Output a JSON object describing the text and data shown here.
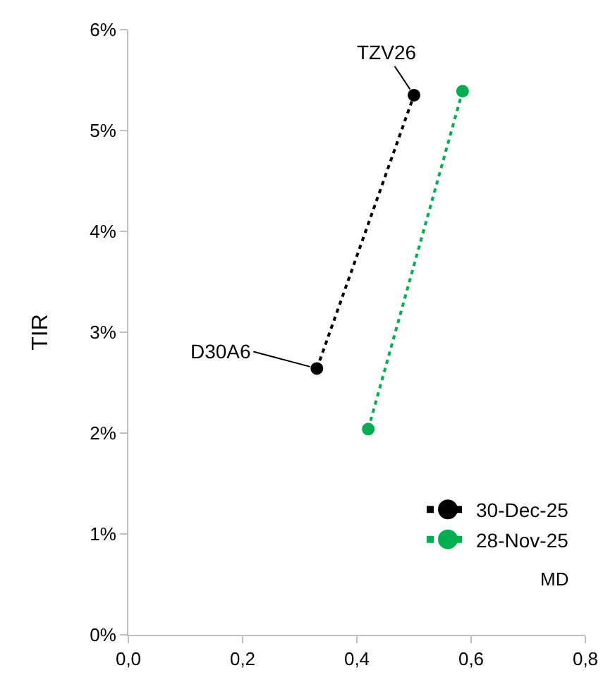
{
  "chart_data": {
    "type": "line",
    "xlabel": "MD",
    "ylabel": "TIR",
    "series": [
      {
        "name": "30-Dec-25",
        "color": "#000000",
        "x": [
          0.33,
          0.5
        ],
        "values": [
          2.64,
          5.35
        ]
      },
      {
        "name": "28-Nov-25",
        "color": "#00b050",
        "x": [
          0.42,
          0.585
        ],
        "values": [
          2.04,
          5.39
        ]
      }
    ],
    "annotations": [
      {
        "text": "TZV26",
        "x": 0.5,
        "y": 5.35
      },
      {
        "text": "D30A6",
        "x": 0.33,
        "y": 2.64
      }
    ],
    "xlim": [
      0,
      0.8
    ],
    "xticks": [
      {
        "value": 0,
        "label": "0,0"
      },
      {
        "value": 0.2,
        "label": "0,2"
      },
      {
        "value": 0.4,
        "label": "0,4"
      },
      {
        "value": 0.6,
        "label": "0,6"
      },
      {
        "value": 0.8,
        "label": "0,8"
      }
    ],
    "ylim": [
      0,
      6
    ],
    "yticks": [
      {
        "value": 0,
        "label": "0%"
      },
      {
        "value": 1,
        "label": "1%"
      },
      {
        "value": 2,
        "label": "2%"
      },
      {
        "value": 3,
        "label": "3%"
      },
      {
        "value": 4,
        "label": "4%"
      },
      {
        "value": 5,
        "label": "5%"
      },
      {
        "value": 6,
        "label": "6%"
      }
    ],
    "grid": false,
    "legend": "bottom right",
    "marker": "circle",
    "line_style": "dotted"
  }
}
